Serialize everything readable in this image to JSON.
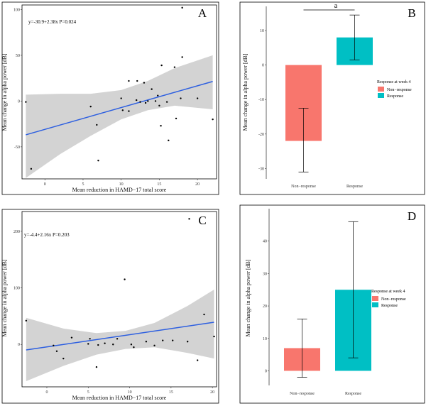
{
  "chart_data": [
    {
      "panel": "A",
      "type": "scatter",
      "annotation": "y=-30.9+2.38x     P=0.024",
      "xlabel": "Mean reduction in HAMD−17 total score",
      "ylabel": "Mean change  in  alpha power  [dB]",
      "xlim": [
        -3,
        22.5
      ],
      "ylim": [
        -85,
        105
      ],
      "xticks": [
        0,
        5,
        10,
        15,
        20
      ],
      "yticks": [
        -50,
        0,
        50,
        100
      ],
      "points": [
        [
          -2.5,
          -1
        ],
        [
          -1.8,
          -74
        ],
        [
          6,
          -6
        ],
        [
          6.8,
          -26
        ],
        [
          7.0,
          -65
        ],
        [
          10,
          3
        ],
        [
          10.2,
          -10
        ],
        [
          11,
          22
        ],
        [
          11,
          -11
        ],
        [
          12,
          1
        ],
        [
          12.1,
          22
        ],
        [
          12.5,
          -1
        ],
        [
          13,
          20
        ],
        [
          13.2,
          -2
        ],
        [
          13.5,
          0
        ],
        [
          14,
          13
        ],
        [
          14.5,
          0
        ],
        [
          14.8,
          6
        ],
        [
          15,
          -5
        ],
        [
          15.2,
          -27
        ],
        [
          15.3,
          39
        ],
        [
          16,
          -1
        ],
        [
          16.2,
          -43
        ],
        [
          17,
          37
        ],
        [
          17.2,
          -19
        ],
        [
          17.8,
          3
        ],
        [
          18,
          48
        ],
        [
          18,
          102
        ],
        [
          20,
          3
        ],
        [
          22,
          -20
        ]
      ],
      "fit": {
        "intercept": -30.9,
        "slope": 2.38
      },
      "ci_band": {
        "x": [
          -2.5,
          2.0,
          6.0,
          10.0,
          13.5,
          17.0,
          22.0
        ],
        "lower": [
          -84,
          -58,
          -38,
          -20,
          -10,
          -5,
          -9
        ],
        "upper": [
          7,
          8,
          8,
          12,
          22,
          36,
          50
        ]
      }
    },
    {
      "panel": "B",
      "type": "bar",
      "categories": [
        "Non−response",
        "Response"
      ],
      "values": [
        -22,
        8
      ],
      "error_low": [
        -31,
        1.5
      ],
      "error_high": [
        -12.5,
        14.5
      ],
      "colors": [
        "#F8766D",
        "#00BFC4"
      ],
      "ylabel": "Mean change  in  alpha power  [dB]",
      "ylim": [
        -33,
        17
      ],
      "yticks": [
        -30,
        -20,
        -10,
        0,
        10
      ],
      "significance": "a",
      "legend": {
        "title": "Response at week 4",
        "entries": [
          "Non−response",
          "Response"
        ]
      }
    },
    {
      "panel": "C",
      "type": "scatter",
      "annotation": "y=-4.4+2.16x     P=0.203",
      "xlabel": "Mean reduction in HAMD−17 total score",
      "ylabel": "Mean change  in  alpha power  [dB]",
      "xlim": [
        -3,
        20.5
      ],
      "ylim": [
        -75,
        235
      ],
      "xticks": [
        0,
        5,
        10,
        15,
        20
      ],
      "yticks": [
        0,
        100,
        200
      ],
      "points": [
        [
          -2.5,
          42
        ],
        [
          0.8,
          -2
        ],
        [
          1.2,
          -12
        ],
        [
          2,
          -25
        ],
        [
          3,
          12
        ],
        [
          5,
          1
        ],
        [
          5.2,
          10
        ],
        [
          6,
          -40
        ],
        [
          6.2,
          -1
        ],
        [
          7,
          2
        ],
        [
          8,
          0
        ],
        [
          8.5,
          10
        ],
        [
          9.4,
          115
        ],
        [
          10.2,
          0
        ],
        [
          10.5,
          -5
        ],
        [
          12,
          5
        ],
        [
          13,
          -2
        ],
        [
          14,
          7
        ],
        [
          15.2,
          7
        ],
        [
          17,
          5
        ],
        [
          17.2,
          222
        ],
        [
          18.2,
          -28
        ],
        [
          19,
          53
        ],
        [
          20.2,
          14
        ]
      ],
      "fit": {
        "intercept": -4.4,
        "slope": 2.16
      },
      "ci_band": {
        "x": [
          -2.5,
          2.0,
          6.0,
          9.5,
          13.0,
          17.0,
          20.2
        ],
        "lower": [
          -65,
          -38,
          -18,
          -8,
          -5,
          -15,
          -25
        ],
        "upper": [
          47,
          28,
          20,
          24,
          38,
          68,
          97
        ]
      }
    },
    {
      "panel": "D",
      "type": "bar",
      "categories": [
        "Non−response",
        "Response"
      ],
      "values": [
        7,
        25
      ],
      "error_low": [
        -2,
        4
      ],
      "error_high": [
        16,
        46
      ],
      "colors": [
        "#F8766D",
        "#00BFC4"
      ],
      "ylabel": "Mean change  in  alpha power  [dB]",
      "ylim": [
        -4.5,
        50
      ],
      "yticks": [
        0,
        10,
        20,
        30,
        40
      ],
      "legend": {
        "title": "Response at week 4",
        "entries": [
          "Non−response",
          "Response"
        ]
      }
    }
  ]
}
